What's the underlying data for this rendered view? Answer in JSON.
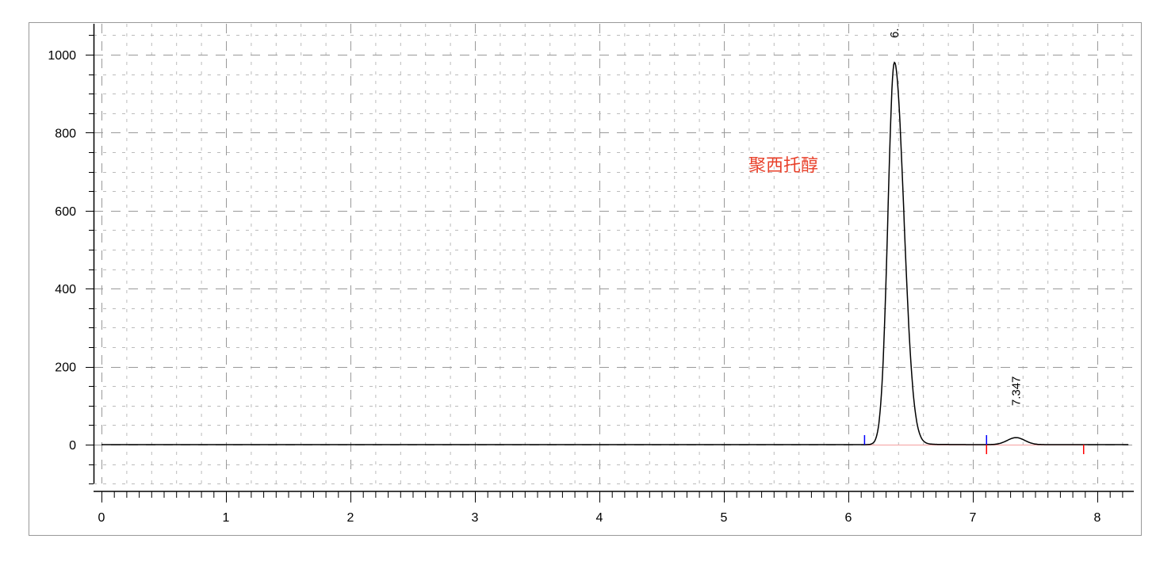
{
  "chart_data": {
    "type": "line",
    "title": "",
    "xlabel": "",
    "ylabel": "",
    "xlim": [
      0,
      8.25
    ],
    "ylim": [
      -100,
      1080
    ],
    "x_ticks": [
      "0",
      "1",
      "2",
      "3",
      "4",
      "5",
      "6",
      "7",
      "8"
    ],
    "y_ticks": [
      "0",
      "200",
      "400",
      "600",
      "800",
      "1000"
    ],
    "grid": true,
    "peaks": [
      {
        "retention_time": 6.37,
        "height": 980,
        "label": "6."
      },
      {
        "retention_time": 7.347,
        "height": 18,
        "label": "7.347"
      }
    ],
    "baseline_markers": [
      {
        "x": 6.13,
        "kind": "start",
        "color": "#0000ff"
      },
      {
        "x": 7.11,
        "kind": "start",
        "color": "#0000ff"
      },
      {
        "x": 7.11,
        "kind": "end",
        "color": "#ff0000"
      },
      {
        "x": 7.89,
        "kind": "end",
        "color": "#ff0000"
      }
    ],
    "annotation": {
      "text": "聚西托醇",
      "x": 5.55,
      "y": 720,
      "color": "#e8402a"
    },
    "trace_color": "#000000"
  }
}
